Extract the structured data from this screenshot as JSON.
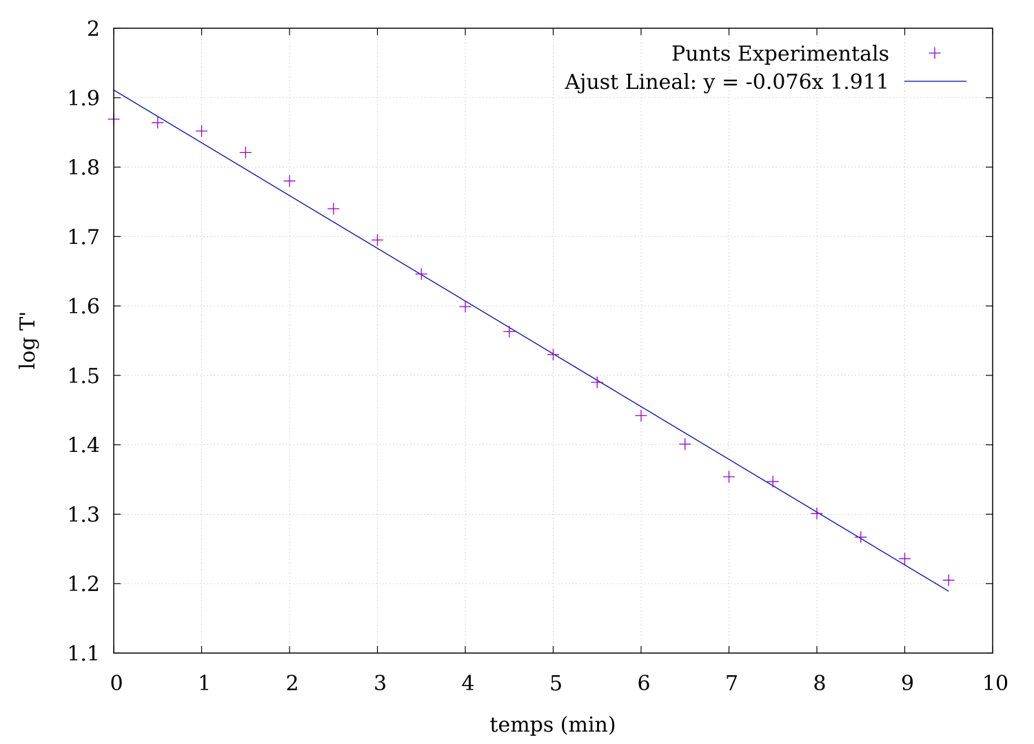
{
  "chart_data": {
    "type": "scatter",
    "xlabel": "temps (min)",
    "ylabel": "log T'",
    "xlim": [
      0,
      10
    ],
    "ylim": [
      1.1,
      2
    ],
    "x_ticks": [
      0,
      1,
      2,
      3,
      4,
      5,
      6,
      7,
      8,
      9,
      10
    ],
    "y_ticks": [
      1.1,
      1.2,
      1.3,
      1.4,
      1.5,
      1.6,
      1.7,
      1.8,
      1.9,
      2
    ],
    "x_tick_labels": [
      "0",
      "1",
      "2",
      "3",
      "4",
      "5",
      "6",
      "7",
      "8",
      "9",
      "10"
    ],
    "y_tick_labels": [
      "1.1",
      "1.2",
      "1.3",
      "1.4",
      "1.5",
      "1.6",
      "1.7",
      "1.8",
      "1.9",
      "2"
    ],
    "grid": true,
    "legend_position": "top-right",
    "series": [
      {
        "name": "Punts Experimentals",
        "kind": "points",
        "marker": "plus",
        "color": "#9400d3",
        "x": [
          0,
          0.5,
          1,
          1.5,
          2,
          2.5,
          3,
          3.5,
          4,
          4.5,
          5,
          5.5,
          6,
          6.5,
          7,
          7.5,
          8,
          8.5,
          9,
          9.5
        ],
        "y": [
          1.869,
          1.864,
          1.852,
          1.821,
          1.78,
          1.74,
          1.695,
          1.646,
          1.599,
          1.563,
          1.53,
          1.49,
          1.442,
          1.401,
          1.354,
          1.347,
          1.301,
          1.267,
          1.236,
          1.205
        ]
      },
      {
        "name": "Ajust Lineal: y = -0.076x 1.911",
        "kind": "line",
        "color": "#0000cd",
        "x": [
          0,
          9.5
        ],
        "y": [
          1.911,
          1.189
        ]
      }
    ]
  }
}
